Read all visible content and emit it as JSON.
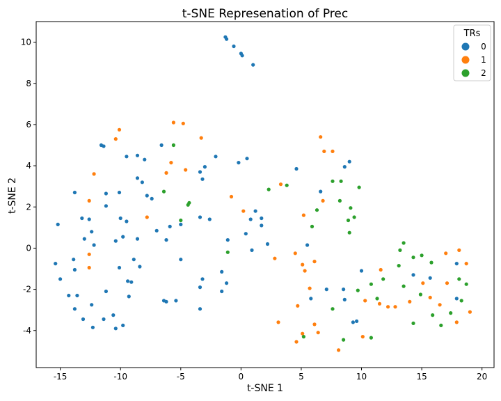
{
  "chart_data": {
    "type": "scatter",
    "title": "t-SNE Represenation of Prec",
    "xlabel": "t-SNE 1",
    "ylabel": "t-SNE 2",
    "xlim": [
      -17,
      21
    ],
    "ylim": [
      -5.8,
      11.0
    ],
    "xticks": [
      -15,
      -10,
      -5,
      0,
      5,
      10,
      15,
      20
    ],
    "yticks": [
      -4,
      -2,
      0,
      2,
      4,
      6,
      8,
      10
    ],
    "grid": false,
    "legend": {
      "title": "TRs",
      "placement": "top-right"
    },
    "series": [
      {
        "name": "0",
        "color": "#1f77b4",
        "points": [
          [
            -1.3,
            10.25
          ],
          [
            -1.2,
            10.15
          ],
          [
            -0.6,
            9.8
          ],
          [
            0.0,
            9.45
          ],
          [
            0.1,
            9.35
          ],
          [
            1.0,
            8.9
          ],
          [
            -11.6,
            5.0
          ],
          [
            -11.4,
            4.95
          ],
          [
            -9.5,
            4.45
          ],
          [
            -8.6,
            4.5
          ],
          [
            -8.0,
            4.3
          ],
          [
            -6.6,
            5.0
          ],
          [
            -2.1,
            4.45
          ],
          [
            -0.2,
            4.15
          ],
          [
            0.5,
            4.35
          ],
          [
            -3.4,
            3.7
          ],
          [
            -3.0,
            3.95
          ],
          [
            -3.2,
            3.35
          ],
          [
            -8.6,
            3.4
          ],
          [
            -8.2,
            3.2
          ],
          [
            -7.8,
            2.55
          ],
          [
            -7.4,
            2.4
          ],
          [
            -10.1,
            2.7
          ],
          [
            -11.2,
            2.65
          ],
          [
            -13.8,
            2.7
          ],
          [
            -11.2,
            2.05
          ],
          [
            -15.2,
            1.15
          ],
          [
            -13.2,
            1.45
          ],
          [
            -12.6,
            1.4
          ],
          [
            -10.0,
            1.45
          ],
          [
            -9.5,
            1.3
          ],
          [
            -12.4,
            0.8
          ],
          [
            -13.0,
            0.45
          ],
          [
            -12.2,
            0.15
          ],
          [
            -10.4,
            0.35
          ],
          [
            -9.8,
            0.55
          ],
          [
            -8.6,
            0.45
          ],
          [
            -5.9,
            1.05
          ],
          [
            -5.0,
            1.15
          ],
          [
            -3.4,
            1.5
          ],
          [
            -2.6,
            1.4
          ],
          [
            -7.0,
            0.85
          ],
          [
            -6.2,
            0.4
          ],
          [
            1.2,
            1.8
          ],
          [
            0.8,
            1.4
          ],
          [
            1.7,
            1.45
          ],
          [
            1.7,
            1.1
          ],
          [
            0.4,
            0.7
          ],
          [
            -1.1,
            0.4
          ],
          [
            2.2,
            0.2
          ],
          [
            0.9,
            -0.1
          ],
          [
            4.6,
            3.85
          ],
          [
            6.6,
            2.75
          ],
          [
            8.6,
            3.95
          ],
          [
            9.0,
            4.2
          ],
          [
            5.5,
            0.15
          ],
          [
            -15.4,
            -0.75
          ],
          [
            -15.0,
            -1.5
          ],
          [
            -13.9,
            -0.55
          ],
          [
            -13.8,
            -1.05
          ],
          [
            -10.1,
            -0.95
          ],
          [
            -8.9,
            -0.55
          ],
          [
            -8.4,
            -0.9
          ],
          [
            -5.0,
            -0.55
          ],
          [
            -9.4,
            -1.6
          ],
          [
            -9.1,
            -1.65
          ],
          [
            -11.2,
            -2.1
          ],
          [
            -14.3,
            -2.3
          ],
          [
            -13.6,
            -2.3
          ],
          [
            -9.3,
            -2.35
          ],
          [
            -6.4,
            -2.55
          ],
          [
            -6.2,
            -2.6
          ],
          [
            -5.4,
            -2.55
          ],
          [
            -3.2,
            -1.5
          ],
          [
            -3.4,
            -1.9
          ],
          [
            -1.6,
            -1.15
          ],
          [
            -1.2,
            -1.7
          ],
          [
            -1.6,
            -2.1
          ],
          [
            -3.4,
            -2.95
          ],
          [
            -13.8,
            -2.95
          ],
          [
            -12.4,
            -2.75
          ],
          [
            -13.1,
            -3.45
          ],
          [
            -11.4,
            -3.45
          ],
          [
            -12.3,
            -3.85
          ],
          [
            -9.8,
            -3.75
          ],
          [
            -10.4,
            -3.9
          ],
          [
            -10.6,
            -3.25
          ],
          [
            10.0,
            -1.1
          ],
          [
            8.5,
            -2.0
          ],
          [
            8.6,
            -2.5
          ],
          [
            7.1,
            -2.0
          ],
          [
            5.8,
            -2.45
          ],
          [
            9.3,
            -3.6
          ],
          [
            9.6,
            -3.55
          ],
          [
            14.3,
            -1.3
          ],
          [
            15.7,
            -1.45
          ],
          [
            17.9,
            -0.75
          ],
          [
            17.9,
            -2.45
          ]
        ]
      },
      {
        "name": "1",
        "color": "#ff7f0e",
        "points": [
          [
            -5.6,
            6.1
          ],
          [
            -4.8,
            6.05
          ],
          [
            -10.1,
            5.75
          ],
          [
            -10.4,
            5.3
          ],
          [
            -3.3,
            5.35
          ],
          [
            -5.8,
            4.15
          ],
          [
            -4.6,
            3.8
          ],
          [
            -6.2,
            3.65
          ],
          [
            -12.2,
            3.6
          ],
          [
            -12.6,
            2.3
          ],
          [
            -7.8,
            1.5
          ],
          [
            6.6,
            5.4
          ],
          [
            6.9,
            4.7
          ],
          [
            7.6,
            4.7
          ],
          [
            3.3,
            3.1
          ],
          [
            -0.8,
            2.5
          ],
          [
            0.2,
            1.8
          ],
          [
            6.8,
            2.3
          ],
          [
            5.2,
            1.6
          ],
          [
            -12.6,
            -0.3
          ],
          [
            -12.6,
            -0.95
          ],
          [
            2.8,
            -0.5
          ],
          [
            4.5,
            -0.25
          ],
          [
            6.1,
            -0.65
          ],
          [
            5.1,
            -0.8
          ],
          [
            5.3,
            -1.1
          ],
          [
            5.7,
            -1.95
          ],
          [
            4.7,
            -2.8
          ],
          [
            3.1,
            -3.6
          ],
          [
            6.1,
            -3.7
          ],
          [
            6.4,
            -4.1
          ],
          [
            5.1,
            -4.15
          ],
          [
            4.6,
            -4.55
          ],
          [
            8.1,
            -4.95
          ],
          [
            10.1,
            -4.3
          ],
          [
            10.3,
            -2.55
          ],
          [
            11.5,
            -2.7
          ],
          [
            12.2,
            -2.85
          ],
          [
            12.8,
            -2.85
          ],
          [
            11.6,
            -1.05
          ],
          [
            14.0,
            -2.6
          ],
          [
            15.1,
            -1.7
          ],
          [
            15.7,
            -2.4
          ],
          [
            16.5,
            -2.75
          ],
          [
            17.1,
            -1.7
          ],
          [
            17.9,
            -3.6
          ],
          [
            19.0,
            -3.1
          ],
          [
            17.0,
            -0.25
          ],
          [
            18.1,
            -0.1
          ],
          [
            18.7,
            -0.75
          ]
        ]
      },
      {
        "name": "2",
        "color": "#2ca02c",
        "points": [
          [
            -5.6,
            5.0
          ],
          [
            -6.4,
            2.75
          ],
          [
            -4.3,
            2.2
          ],
          [
            -4.4,
            2.1
          ],
          [
            -5.0,
            1.35
          ],
          [
            -1.1,
            -0.2
          ],
          [
            2.3,
            2.85
          ],
          [
            3.8,
            3.05
          ],
          [
            7.6,
            3.25
          ],
          [
            8.3,
            3.25
          ],
          [
            9.8,
            2.95
          ],
          [
            6.3,
            1.85
          ],
          [
            8.2,
            2.3
          ],
          [
            9.1,
            1.95
          ],
          [
            9.4,
            1.5
          ],
          [
            8.9,
            1.35
          ],
          [
            5.9,
            1.05
          ],
          [
            9.0,
            0.75
          ],
          [
            13.2,
            -0.1
          ],
          [
            13.5,
            0.25
          ],
          [
            14.3,
            -0.45
          ],
          [
            15.0,
            -0.35
          ],
          [
            15.8,
            -0.7
          ],
          [
            13.1,
            -0.85
          ],
          [
            11.8,
            -1.5
          ],
          [
            10.8,
            -1.75
          ],
          [
            9.7,
            -2.05
          ],
          [
            13.5,
            -1.85
          ],
          [
            14.9,
            -2.25
          ],
          [
            11.3,
            -2.45
          ],
          [
            7.6,
            -2.95
          ],
          [
            14.3,
            -3.65
          ],
          [
            15.9,
            -3.25
          ],
          [
            16.6,
            -3.75
          ],
          [
            17.4,
            -3.15
          ],
          [
            18.1,
            -1.5
          ],
          [
            18.7,
            -1.75
          ],
          [
            18.3,
            -2.55
          ],
          [
            5.2,
            -4.3
          ],
          [
            8.5,
            -4.45
          ],
          [
            10.8,
            -4.35
          ]
        ]
      }
    ]
  }
}
